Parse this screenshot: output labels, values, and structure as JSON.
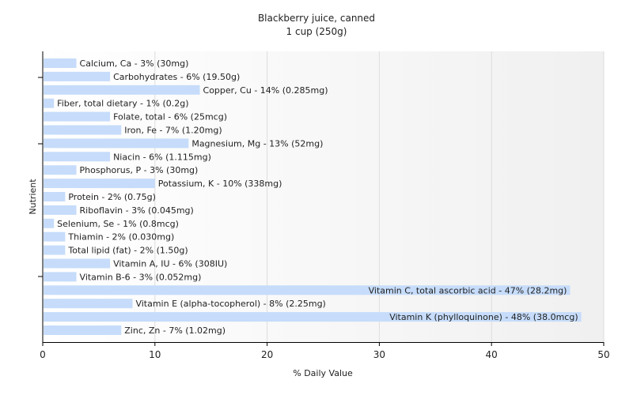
{
  "chart_data": {
    "type": "bar",
    "orientation": "horizontal",
    "title": "Blackberry juice, canned",
    "subtitle": "1 cup (250g)",
    "xlabel": "% Daily Value",
    "ylabel": "Nutrient",
    "xlim": [
      0,
      50
    ],
    "xticks": [
      0,
      10,
      20,
      30,
      40,
      50
    ],
    "grid": true,
    "bar_color": "#c6dcfa",
    "categories": [
      "Calcium, Ca",
      "Carbohydrates",
      "Copper, Cu",
      "Fiber, total dietary",
      "Folate, total",
      "Iron, Fe",
      "Magnesium, Mg",
      "Niacin",
      "Phosphorus, P",
      "Potassium, K",
      "Protein",
      "Riboflavin",
      "Selenium, Se",
      "Thiamin",
      "Total lipid (fat)",
      "Vitamin A, IU",
      "Vitamin B-6",
      "Vitamin C, total ascorbic acid",
      "Vitamin E (alpha-tocopherol)",
      "Vitamin K (phylloquinone)",
      "Zinc, Zn"
    ],
    "values": [
      3,
      6,
      14,
      1,
      6,
      7,
      13,
      6,
      3,
      10,
      2,
      3,
      1,
      2,
      2,
      6,
      3,
      47,
      8,
      48,
      7
    ],
    "labels": [
      "Calcium, Ca - 3% (30mg)",
      "Carbohydrates - 6% (19.50g)",
      "Copper, Cu - 14% (0.285mg)",
      "Fiber, total dietary - 1% (0.2g)",
      "Folate, total - 6% (25mcg)",
      "Iron, Fe - 7% (1.20mg)",
      "Magnesium, Mg - 13% (52mg)",
      "Niacin - 6% (1.115mg)",
      "Phosphorus, P - 3% (30mg)",
      "Potassium, K - 10% (338mg)",
      "Protein - 2% (0.75g)",
      "Riboflavin - 3% (0.045mg)",
      "Selenium, Se - 1% (0.8mcg)",
      "Thiamin - 2% (0.030mg)",
      "Total lipid (fat) - 2% (1.50g)",
      "Vitamin A, IU - 6% (308IU)",
      "Vitamin B-6 - 3% (0.052mg)",
      "Vitamin C, total ascorbic acid - 47% (28.2mg)",
      "Vitamin E (alpha-tocopherol) - 8% (2.25mg)",
      "Vitamin K (phylloquinone) - 48% (38.0mcg)",
      "Zinc, Zn - 7% (1.02mg)"
    ]
  }
}
